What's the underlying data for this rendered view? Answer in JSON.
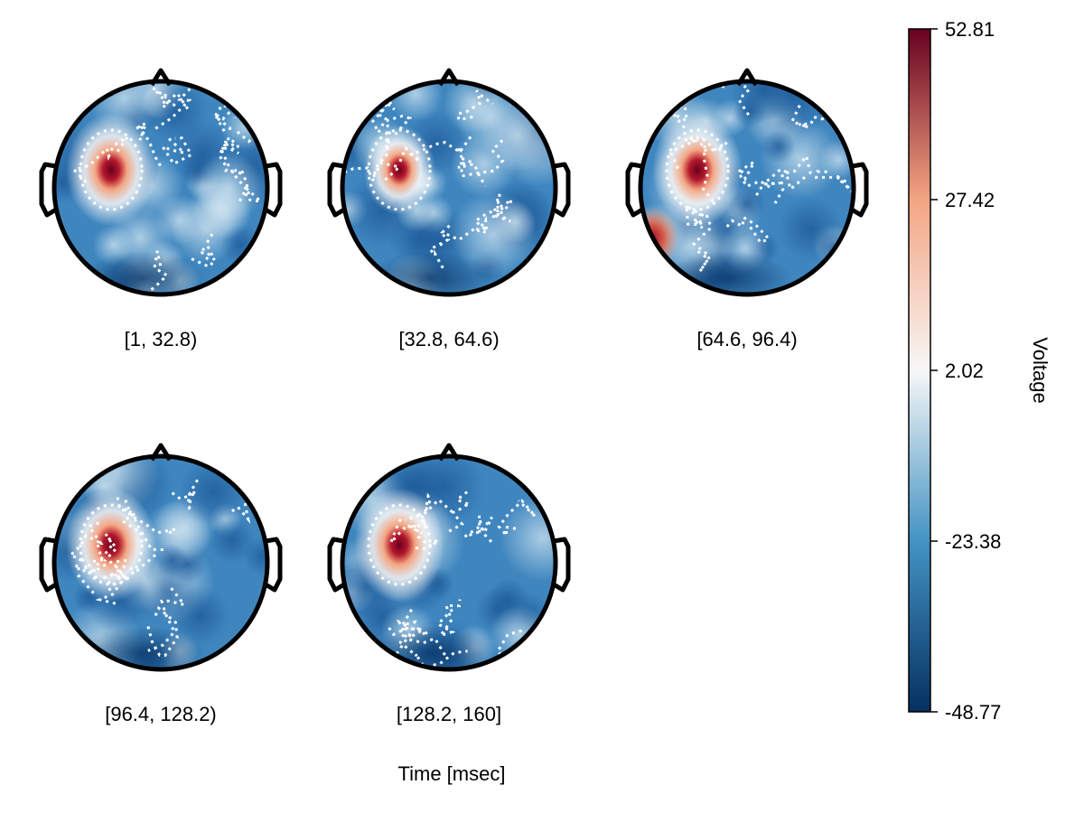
{
  "chart_data": {
    "type": "heatmap",
    "subtype": "eeg-topoplot-series",
    "xlabel": "Time [msec]",
    "colorbar": {
      "label": "Voltage",
      "colormap": "RdBu_r (diverging blue-white-red)",
      "range": [
        -48.77,
        52.81
      ],
      "ticks": [
        52.81,
        27.42,
        2.02,
        -23.38,
        -48.77
      ],
      "tick_labels": [
        "52.81",
        "27.42",
        "2.02",
        "-23.38",
        "-48.77"
      ],
      "placement": "right"
    },
    "panels": [
      {
        "label": "[1, 32.8)",
        "peak_region": "left-frontotemporal",
        "peak_value": 52.81
      },
      {
        "label": "[32.8, 64.6)",
        "peak_region": "left-frontotemporal",
        "peak_value": 40
      },
      {
        "label": "[64.6, 96.4)",
        "peak_region": "left-frontotemporal",
        "peak_value": 52.81
      },
      {
        "label": "[96.4, 128.2)",
        "peak_region": "left-frontotemporal",
        "peak_value": 52.81
      },
      {
        "label": "[128.2, 160]",
        "peak_region": "left-frontotemporal",
        "peak_value": 52.81
      }
    ],
    "colors": {
      "min": "#053061",
      "mid_low": "#4393c3",
      "mid": "#f7f7f7",
      "mid_high": "#f4a582",
      "max": "#67001f",
      "contour": "#ffffff",
      "head_outline": "#000000"
    }
  }
}
